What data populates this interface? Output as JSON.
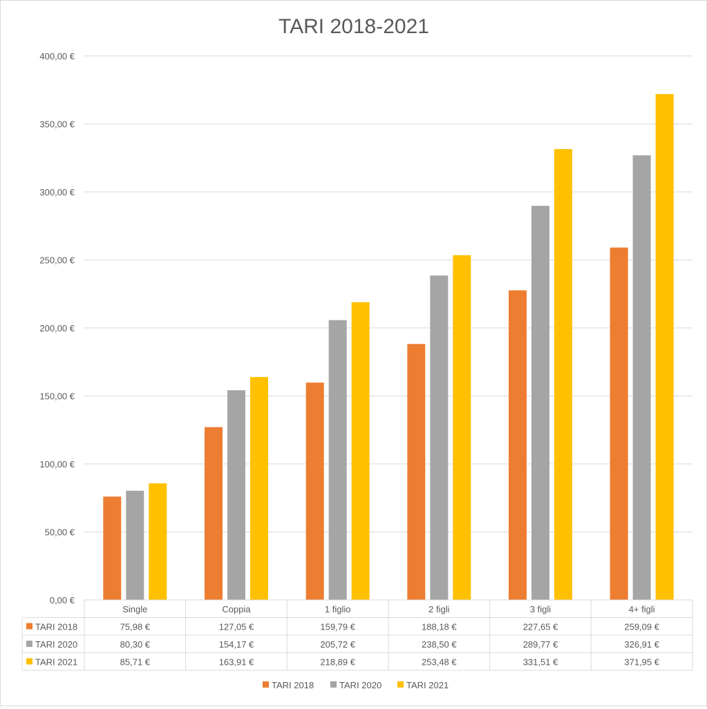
{
  "chart_data": {
    "type": "bar",
    "title": "TARI 2018-2021",
    "xlabel": "",
    "ylabel": "",
    "ylim": [
      0,
      400
    ],
    "y_ticks": [
      0,
      50,
      100,
      150,
      200,
      250,
      300,
      350,
      400
    ],
    "y_tick_labels": [
      "0,00 €",
      "50,00 €",
      "100,00 €",
      "150,00 €",
      "200,00 €",
      "250,00 €",
      "300,00 €",
      "350,00 €",
      "400,00 €"
    ],
    "categories": [
      "Single",
      "Coppia",
      "1 figlio",
      "2 figli",
      "3 figli",
      "4+ figli"
    ],
    "grid": true,
    "legend_position": "bottom",
    "series": [
      {
        "name": "TARI 2018",
        "color": "#ED7D31",
        "values": [
          75.98,
          127.05,
          159.79,
          188.18,
          227.65,
          259.09
        ],
        "labels": [
          "75,98 €",
          "127,05 €",
          "159,79 €",
          "188,18 €",
          "227,65 €",
          "259,09 €"
        ]
      },
      {
        "name": "TARI 2020",
        "color": "#A5A5A5",
        "values": [
          80.3,
          154.17,
          205.72,
          238.5,
          289.77,
          326.91
        ],
        "labels": [
          "80,30 €",
          "154,17 €",
          "205,72 €",
          "238,50 €",
          "289,77 €",
          "326,91 €"
        ]
      },
      {
        "name": "TARI 2021",
        "color": "#FFC000",
        "values": [
          85.71,
          163.91,
          218.89,
          253.48,
          331.51,
          371.95
        ],
        "labels": [
          "85,71 €",
          "163,91 €",
          "218,89 €",
          "253,48 €",
          "331,51 €",
          "371,95 €"
        ]
      }
    ]
  }
}
